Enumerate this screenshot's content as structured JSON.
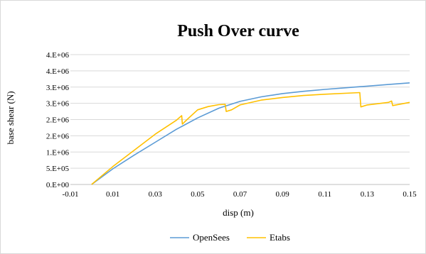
{
  "chart_data": {
    "type": "line",
    "title": "Push Over curve",
    "xlabel": "disp (m)",
    "ylabel": "base shear (N)",
    "xlim": [
      -0.01,
      0.15
    ],
    "ylim": [
      0,
      4000000
    ],
    "x_ticks": [
      -0.01,
      0.01,
      0.03,
      0.05,
      0.07,
      0.09,
      0.11,
      0.13,
      0.15
    ],
    "x_tick_labels": [
      "-0.01",
      "0.01",
      "0.03",
      "0.05",
      "0.07",
      "0.09",
      "0.11",
      "0.13",
      "0.15"
    ],
    "y_ticks": [
      0,
      500000,
      1000000,
      1500000,
      2000000,
      2500000,
      3000000,
      3500000,
      4000000
    ],
    "y_tick_labels": [
      "0.E+00",
      "5.E+05",
      "1.E+06",
      "2.E+06",
      "2.E+06",
      "3.E+06",
      "3.E+06",
      "4.E+06",
      "4.E+06"
    ],
    "grid": true,
    "legend_position": "bottom",
    "series": [
      {
        "name": "OpenSees",
        "color": "#5b9bd5",
        "x": [
          0,
          0.01,
          0.02,
          0.03,
          0.04,
          0.05,
          0.06,
          0.07,
          0.08,
          0.09,
          0.1,
          0.11,
          0.12,
          0.13,
          0.14,
          0.15
        ],
        "y": [
          0,
          480000,
          900000,
          1300000,
          1700000,
          2050000,
          2350000,
          2560000,
          2700000,
          2800000,
          2870000,
          2930000,
          2980000,
          3030000,
          3080000,
          3130000
        ]
      },
      {
        "name": "Etabs",
        "color": "#ffc000",
        "x": [
          0,
          0.01,
          0.02,
          0.03,
          0.04,
          0.0425,
          0.0428,
          0.045,
          0.05,
          0.055,
          0.06,
          0.063,
          0.0635,
          0.066,
          0.07,
          0.08,
          0.09,
          0.1,
          0.11,
          0.1265,
          0.127,
          0.13,
          0.14,
          0.1415,
          0.142,
          0.15
        ],
        "y": [
          0,
          550000,
          1050000,
          1550000,
          1980000,
          2120000,
          1860000,
          2000000,
          2300000,
          2400000,
          2460000,
          2470000,
          2250000,
          2300000,
          2450000,
          2600000,
          2680000,
          2740000,
          2780000,
          2830000,
          2390000,
          2450000,
          2530000,
          2570000,
          2430000,
          2530000
        ]
      }
    ]
  }
}
